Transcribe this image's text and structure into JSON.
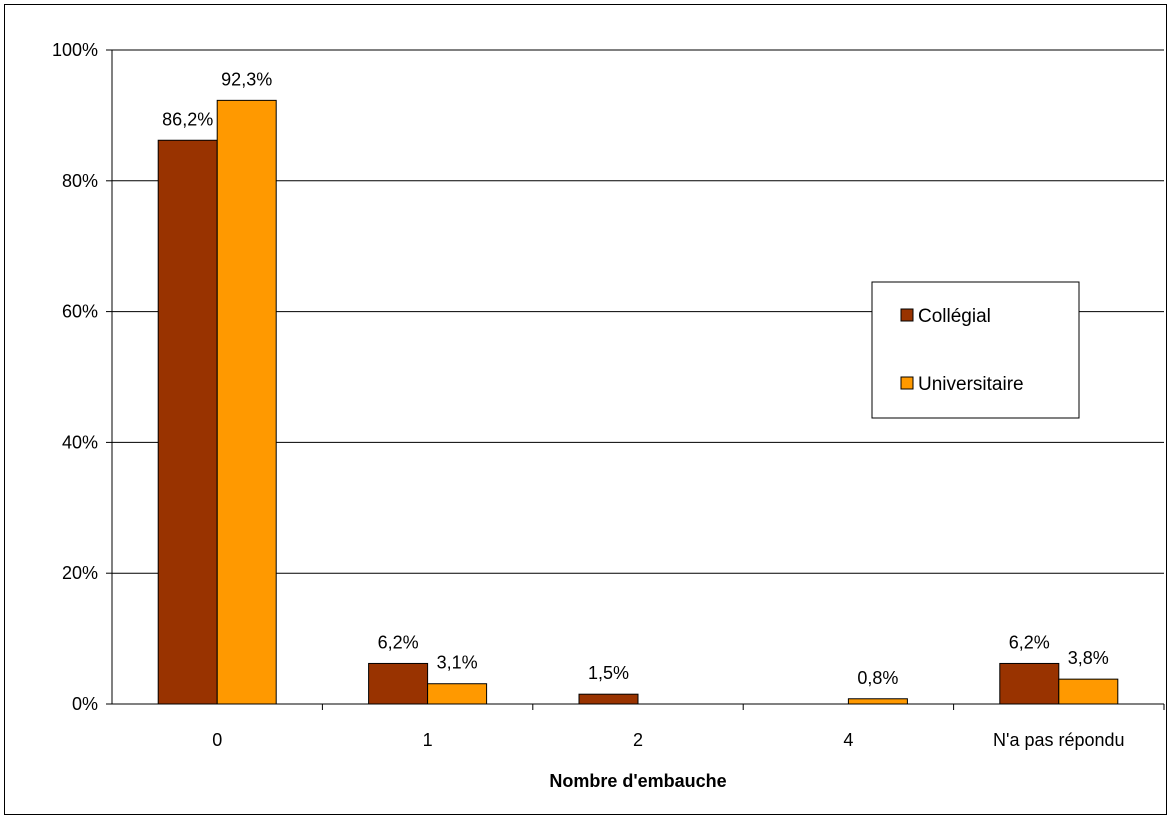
{
  "chart_data": {
    "type": "bar",
    "title": "",
    "xlabel": "Nombre d'embauche",
    "ylabel": "",
    "categories": [
      "0",
      "1",
      "2",
      "4",
      "N'a pas répondu"
    ],
    "series": [
      {
        "name": "Collégial",
        "color": "#993300",
        "values": [
          86.2,
          6.2,
          1.5,
          null,
          6.2
        ],
        "labels": [
          "86,2%",
          "6,2%",
          "1,5%",
          null,
          "6,2%"
        ]
      },
      {
        "name": "Universitaire",
        "color": "#FF9900",
        "values": [
          92.3,
          3.1,
          null,
          0.8,
          3.8
        ],
        "labels": [
          "92,3%",
          "3,1%",
          null,
          "0,8%",
          "3,8%"
        ]
      }
    ],
    "ylim": [
      0,
      100
    ],
    "yticks": [
      0,
      20,
      40,
      60,
      80,
      100
    ],
    "ytick_labels": [
      "0%",
      "20%",
      "40%",
      "60%",
      "80%",
      "100%"
    ],
    "grid": true,
    "legend_position": "right"
  }
}
